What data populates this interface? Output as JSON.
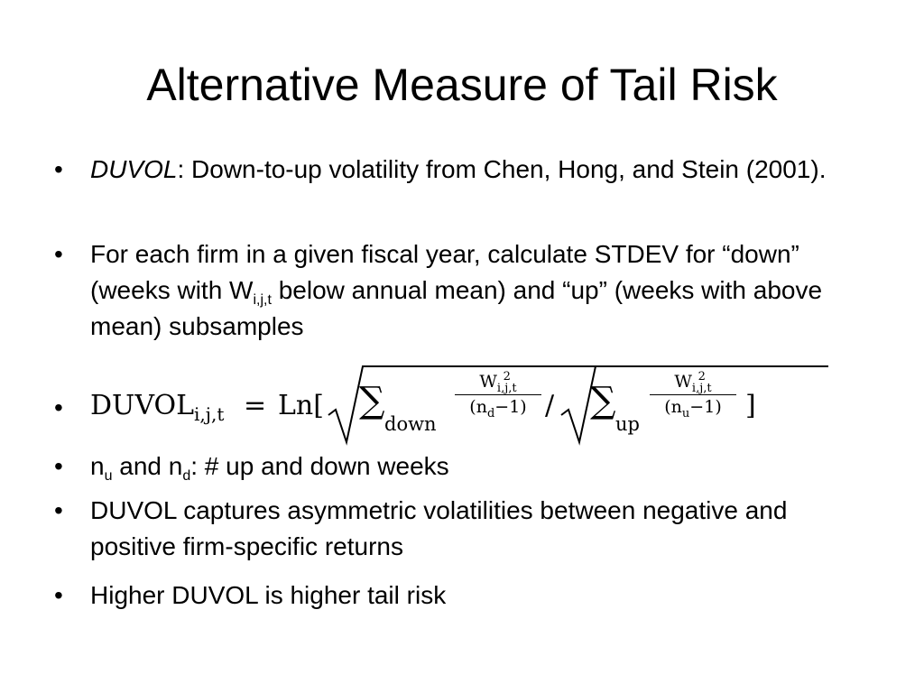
{
  "title": "Alternative Measure of Tail Risk",
  "bullet_char": "•",
  "b1": {
    "term": "DUVOL",
    "rest": ": Down-to-up volatility from Chen, Hong, and Stein (2001)."
  },
  "b2": {
    "pre": "For each firm in a given fiscal year, calculate STDEV for “down” (weeks with W",
    "sub": "i,j,t",
    "post": " below annual mean) and “up” (weeks with above mean) subsamples"
  },
  "b3": {
    "lhs": "DUVOL",
    "lhs_sub": "i,j,t",
    "eq": "=",
    "ln": "Ln[",
    "sigma": "∑",
    "down": "down",
    "up": "up",
    "num_base": "W",
    "num_sup": "2",
    "num_sub": "i,j,t",
    "den_down_n": "n",
    "den_down_sub": "d",
    "den_down_rest": "−1",
    "den_up_n": "n",
    "den_up_sub": "u",
    "den_up_rest": "−1",
    "slash": "/",
    "close": "]"
  },
  "b4": {
    "n1": "n",
    "s1": "u",
    "mid": " and n",
    "s2": "d",
    "post": ": # up and down weeks"
  },
  "b5": {
    "text": "DUVOL captures asymmetric volatilities between negative and positive firm-specific returns"
  },
  "b6": {
    "text": "Higher DUVOL is higher tail risk"
  }
}
